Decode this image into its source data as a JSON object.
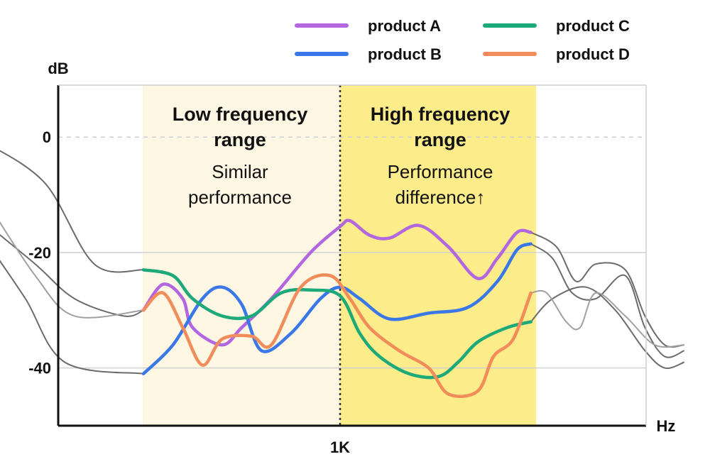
{
  "chart_data": {
    "type": "line",
    "ylabel": "dB",
    "xlabel": "Hz",
    "ylim": [
      -50,
      9
    ],
    "y_ticks": [
      0,
      -20,
      -40
    ],
    "x_ticks": [
      {
        "label": "1K",
        "value": 0
      }
    ],
    "grid": "horizontal dashed at 0, solid at -20 and -40",
    "legend": "top-right",
    "regions": [
      {
        "title_lines": [
          "Low frequency",
          "range"
        ],
        "sub_lines": [
          "Similar",
          "performance"
        ],
        "color": "#fdf7e3"
      },
      {
        "title_lines": [
          "High frequency",
          "range"
        ],
        "sub_lines": [
          "Performance",
          "difference↑"
        ],
        "color": "#fcec8a"
      }
    ],
    "series": [
      {
        "name": "product A",
        "color": "#b266e0",
        "points": [
          [
            -1,
            -30
          ],
          [
            -0.9,
            -25.5
          ],
          [
            -0.8,
            -28
          ],
          [
            -0.75,
            -33
          ],
          [
            -0.6,
            -36
          ],
          [
            -0.5,
            -33
          ],
          [
            -0.35,
            -28
          ],
          [
            -0.15,
            -20
          ],
          [
            0,
            -15.5
          ],
          [
            0.05,
            -14.5
          ],
          [
            0.15,
            -17
          ],
          [
            0.25,
            -17.5
          ],
          [
            0.4,
            -15.3
          ],
          [
            0.55,
            -19
          ],
          [
            0.7,
            -24.5
          ],
          [
            0.8,
            -21
          ],
          [
            0.9,
            -16.5
          ],
          [
            0.97,
            -16.5
          ]
        ]
      },
      {
        "name": "product B",
        "color": "#3b78e7",
        "points": [
          [
            -1,
            -41
          ],
          [
            -0.85,
            -36
          ],
          [
            -0.7,
            -28
          ],
          [
            -0.6,
            -26
          ],
          [
            -0.5,
            -29
          ],
          [
            -0.4,
            -37
          ],
          [
            -0.25,
            -34
          ],
          [
            -0.1,
            -28
          ],
          [
            0,
            -26
          ],
          [
            0.1,
            -28
          ],
          [
            0.25,
            -31.5
          ],
          [
            0.45,
            -30.5
          ],
          [
            0.65,
            -29.5
          ],
          [
            0.8,
            -25
          ],
          [
            0.9,
            -19.5
          ],
          [
            0.97,
            -18.5
          ]
        ]
      },
      {
        "name": "product C",
        "color": "#1ea97a",
        "points": [
          [
            -1,
            -23
          ],
          [
            -0.85,
            -24
          ],
          [
            -0.75,
            -28
          ],
          [
            -0.6,
            -31
          ],
          [
            -0.45,
            -31
          ],
          [
            -0.3,
            -27
          ],
          [
            -0.15,
            -26.5
          ],
          [
            0,
            -27.5
          ],
          [
            0.1,
            -34
          ],
          [
            0.2,
            -38
          ],
          [
            0.35,
            -41
          ],
          [
            0.5,
            -41.5
          ],
          [
            0.6,
            -39
          ],
          [
            0.7,
            -35.5
          ],
          [
            0.85,
            -33
          ],
          [
            0.97,
            -32
          ]
        ]
      },
      {
        "name": "product D",
        "color": "#f28c5a",
        "points": [
          [
            -1,
            -30
          ],
          [
            -0.9,
            -27
          ],
          [
            -0.8,
            -33
          ],
          [
            -0.7,
            -39.5
          ],
          [
            -0.6,
            -35
          ],
          [
            -0.45,
            -34.5
          ],
          [
            -0.35,
            -36
          ],
          [
            -0.2,
            -26
          ],
          [
            -0.05,
            -24
          ],
          [
            0.05,
            -28
          ],
          [
            0.15,
            -33
          ],
          [
            0.3,
            -37
          ],
          [
            0.45,
            -40
          ],
          [
            0.55,
            -44.5
          ],
          [
            0.7,
            -44
          ],
          [
            0.78,
            -38
          ],
          [
            0.88,
            -35
          ],
          [
            0.97,
            -27
          ]
        ]
      }
    ],
    "reference_curves": [
      {
        "color": "#6b6b6b",
        "points": [
          [
            -1.8,
            -1
          ],
          [
            -1.5,
            -8
          ],
          [
            -1.25,
            -22
          ],
          [
            -1,
            -23
          ]
        ]
      },
      {
        "color": "#6b6b6b",
        "points": [
          [
            -1.8,
            -18
          ],
          [
            -1.6,
            -28
          ],
          [
            -1.4,
            -39
          ],
          [
            -1,
            -41
          ]
        ]
      },
      {
        "color": "#6b6b6b",
        "points": [
          [
            -1.8,
            -15
          ],
          [
            -1.55,
            -22
          ],
          [
            -1.35,
            -28
          ],
          [
            -1.1,
            -31
          ],
          [
            -1,
            -30
          ]
        ]
      },
      {
        "color": "#a0a0a0",
        "points": [
          [
            -1.8,
            -11
          ],
          [
            -1.55,
            -24
          ],
          [
            -1.35,
            -31
          ],
          [
            -1,
            -30
          ]
        ]
      },
      {
        "color": "#6b6b6b",
        "points": [
          [
            0.97,
            -16.5
          ],
          [
            1.1,
            -19
          ],
          [
            1.2,
            -25
          ],
          [
            1.3,
            -22
          ],
          [
            1.45,
            -23
          ],
          [
            1.55,
            -31
          ],
          [
            1.65,
            -36
          ],
          [
            1.75,
            -36
          ]
        ]
      },
      {
        "color": "#6b6b6b",
        "points": [
          [
            0.97,
            -18.5
          ],
          [
            1.08,
            -21
          ],
          [
            1.18,
            -27
          ],
          [
            1.3,
            -28
          ],
          [
            1.45,
            -24
          ],
          [
            1.55,
            -33
          ],
          [
            1.65,
            -38
          ],
          [
            1.75,
            -37
          ]
        ]
      },
      {
        "color": "#6b6b6b",
        "points": [
          [
            0.97,
            -32
          ],
          [
            1.08,
            -28
          ],
          [
            1.25,
            -26
          ],
          [
            1.4,
            -30
          ],
          [
            1.55,
            -37
          ],
          [
            1.65,
            -40
          ],
          [
            1.75,
            -39
          ]
        ]
      },
      {
        "color": "#a0a0a0",
        "points": [
          [
            0.97,
            -27
          ],
          [
            1.05,
            -27
          ],
          [
            1.15,
            -32
          ],
          [
            1.22,
            -33
          ],
          [
            1.3,
            -27
          ],
          [
            1.45,
            -31
          ],
          [
            1.6,
            -36
          ],
          [
            1.75,
            -36
          ]
        ]
      }
    ]
  }
}
